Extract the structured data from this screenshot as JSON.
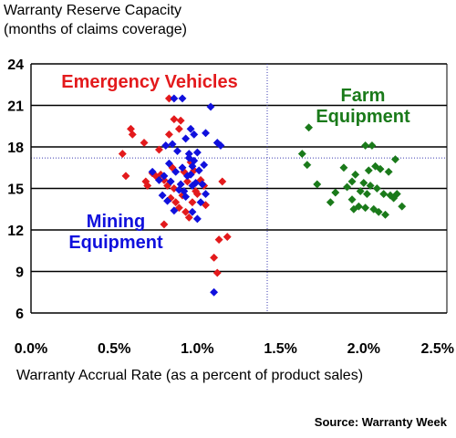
{
  "chart_data": {
    "type": "scatter",
    "title": "Warranty Reserve Capacity",
    "subtitle": "(months of claims coverage)",
    "xlabel": "Warranty Accrual Rate (as a percent of product sales)",
    "ylabel": "",
    "source": "Source: Warranty Week",
    "xlim": [
      0,
      2.5
    ],
    "ylim": [
      6,
      24
    ],
    "x_ticks": [
      "0.0%",
      "0.5%",
      "1.0%",
      "1.5%",
      "2.0%",
      "2.5%"
    ],
    "y_ticks": [
      "6",
      "9",
      "12",
      "15",
      "18",
      "21",
      "24"
    ],
    "x_tick_values": [
      0,
      0.5,
      1.0,
      1.5,
      2.0,
      2.5
    ],
    "y_tick_values": [
      6,
      9,
      12,
      15,
      18,
      21,
      24
    ],
    "grid": "horizontal",
    "reference_lines": {
      "x": 1.42,
      "y": 17.2
    },
    "groups": [
      {
        "label_lines": [
          "Emergency Vehicles"
        ],
        "color": "#e31a1c"
      },
      {
        "label_lines": [
          "Mining",
          "Equipment"
        ],
        "color": "#1010dd"
      },
      {
        "label_lines": [
          "Farm",
          "Equipment"
        ],
        "color": "#1a7a1a"
      }
    ],
    "series": [
      {
        "color": "#e31a1c",
        "points": [
          [
            0.83,
            21.5
          ],
          [
            0.86,
            20.0
          ],
          [
            0.9,
            19.9
          ],
          [
            0.83,
            18.9
          ],
          [
            0.89,
            19.3
          ],
          [
            0.6,
            19.3
          ],
          [
            0.61,
            18.9
          ],
          [
            0.55,
            17.5
          ],
          [
            0.68,
            18.3
          ],
          [
            0.77,
            17.8
          ],
          [
            0.57,
            15.9
          ],
          [
            0.69,
            15.5
          ],
          [
            0.7,
            15.2
          ],
          [
            0.73,
            16.1
          ],
          [
            0.78,
            16.0
          ],
          [
            0.8,
            15.6
          ],
          [
            0.82,
            15.2
          ],
          [
            0.84,
            14.3
          ],
          [
            0.86,
            15.0
          ],
          [
            0.87,
            14.0
          ],
          [
            0.89,
            13.6
          ],
          [
            0.93,
            13.3
          ],
          [
            0.95,
            12.9
          ],
          [
            0.97,
            14.0
          ],
          [
            0.99,
            14.8
          ],
          [
            1.02,
            15.6
          ],
          [
            1.04,
            15.2
          ],
          [
            0.92,
            16.2
          ],
          [
            0.94,
            15.5
          ],
          [
            0.96,
            16.9
          ],
          [
            0.98,
            16.3
          ],
          [
            1.0,
            14.6
          ],
          [
            1.05,
            13.8
          ],
          [
            0.8,
            12.4
          ],
          [
            1.1,
            10.0
          ],
          [
            1.13,
            11.3
          ],
          [
            1.18,
            11.5
          ],
          [
            1.12,
            8.9
          ],
          [
            1.15,
            15.5
          ],
          [
            0.75,
            15.9
          ],
          [
            0.91,
            14.5
          ],
          [
            0.85,
            16.5
          ]
        ]
      },
      {
        "color": "#1010dd",
        "points": [
          [
            0.86,
            21.5
          ],
          [
            0.91,
            21.5
          ],
          [
            1.08,
            20.9
          ],
          [
            0.96,
            19.3
          ],
          [
            0.98,
            18.9
          ],
          [
            1.05,
            19.0
          ],
          [
            0.93,
            18.6
          ],
          [
            0.81,
            18.1
          ],
          [
            0.85,
            18.2
          ],
          [
            0.88,
            17.7
          ],
          [
            1.12,
            18.3
          ],
          [
            1.14,
            18.1
          ],
          [
            1.0,
            17.6
          ],
          [
            0.95,
            17.2
          ],
          [
            0.97,
            16.6
          ],
          [
            0.83,
            16.8
          ],
          [
            0.73,
            16.2
          ],
          [
            0.77,
            15.6
          ],
          [
            0.8,
            15.9
          ],
          [
            0.84,
            15.5
          ],
          [
            0.87,
            16.2
          ],
          [
            0.9,
            15.3
          ],
          [
            0.92,
            14.8
          ],
          [
            0.94,
            15.9
          ],
          [
            0.96,
            16.0
          ],
          [
            0.99,
            15.4
          ],
          [
            1.01,
            16.3
          ],
          [
            1.03,
            15.3
          ],
          [
            0.79,
            14.5
          ],
          [
            0.82,
            14.1
          ],
          [
            0.86,
            13.4
          ],
          [
            0.89,
            14.9
          ],
          [
            0.93,
            14.4
          ],
          [
            0.97,
            13.3
          ],
          [
            1.0,
            12.8
          ],
          [
            1.02,
            14.0
          ],
          [
            0.95,
            17.5
          ],
          [
            0.98,
            17.0
          ],
          [
            0.91,
            16.5
          ],
          [
            1.04,
            16.7
          ],
          [
            1.1,
            7.5
          ],
          [
            0.97,
            15.2
          ],
          [
            1.05,
            14.6
          ]
        ]
      },
      {
        "color": "#1a7a1a",
        "points": [
          [
            1.67,
            19.4
          ],
          [
            2.01,
            18.1
          ],
          [
            2.05,
            18.1
          ],
          [
            1.63,
            17.5
          ],
          [
            2.19,
            17.1
          ],
          [
            1.66,
            16.7
          ],
          [
            2.07,
            16.6
          ],
          [
            2.1,
            16.4
          ],
          [
            2.03,
            16.3
          ],
          [
            1.88,
            16.5
          ],
          [
            1.95,
            16.0
          ],
          [
            2.15,
            16.2
          ],
          [
            1.93,
            15.5
          ],
          [
            2.0,
            15.4
          ],
          [
            2.04,
            15.2
          ],
          [
            2.08,
            15.0
          ],
          [
            1.72,
            15.3
          ],
          [
            1.9,
            15.1
          ],
          [
            1.98,
            14.8
          ],
          [
            2.02,
            14.6
          ],
          [
            2.12,
            14.6
          ],
          [
            2.16,
            14.5
          ],
          [
            2.2,
            14.6
          ],
          [
            1.83,
            14.7
          ],
          [
            1.93,
            14.2
          ],
          [
            1.97,
            13.7
          ],
          [
            2.01,
            13.6
          ],
          [
            2.06,
            13.5
          ],
          [
            2.09,
            13.3
          ],
          [
            2.13,
            13.1
          ],
          [
            2.23,
            13.7
          ],
          [
            2.18,
            14.3
          ],
          [
            1.8,
            14.0
          ],
          [
            1.94,
            13.5
          ]
        ]
      }
    ]
  }
}
